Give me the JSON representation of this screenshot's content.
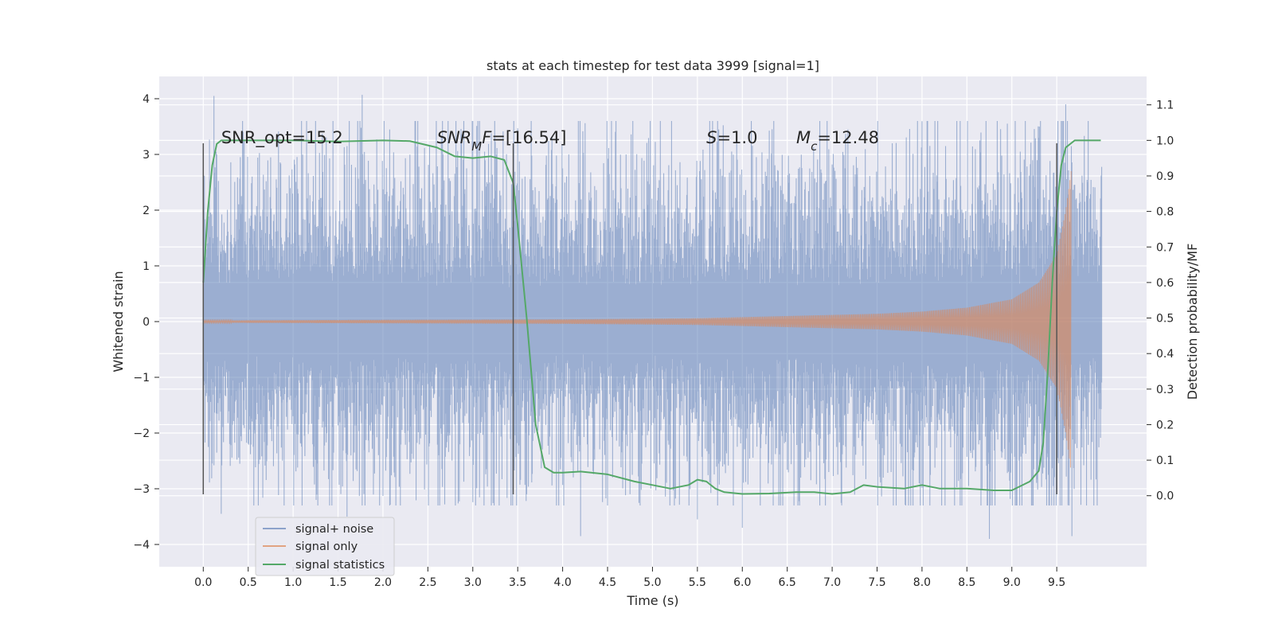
{
  "chart_data": {
    "type": "line",
    "title": "stats at each timestep for test data 3999 [signal=1]",
    "xlabel": "Time (s)",
    "ylabel_left": "Whitened strain",
    "ylabel_right": "Detection probability/MF",
    "xlim": [
      -0.49,
      10.5
    ],
    "ylim_left": [
      -4.4,
      4.4
    ],
    "ylim_right": [
      -0.2,
      1.18
    ],
    "x_ticks": [
      0.0,
      0.5,
      1.0,
      1.5,
      2.0,
      2.5,
      3.0,
      3.5,
      4.0,
      4.5,
      5.0,
      5.5,
      6.0,
      6.5,
      7.0,
      7.5,
      8.0,
      8.5,
      9.0,
      9.5
    ],
    "x_tick_labels": [
      "0.0",
      "0.5",
      "1.0",
      "1.5",
      "2.0",
      "2.5",
      "3.0",
      "3.5",
      "4.0",
      "4.5",
      "5.0",
      "5.5",
      "6.0",
      "6.5",
      "7.0",
      "7.5",
      "8.0",
      "8.5",
      "9.0",
      "9.5"
    ],
    "y_left_ticks": [
      -4,
      -3,
      -2,
      -1,
      0,
      1,
      2,
      3,
      4
    ],
    "y_left_tick_labels": [
      "−4",
      "−3",
      "−2",
      "−1",
      "0",
      "1",
      "2",
      "3",
      "4"
    ],
    "y_right_ticks": [
      0.0,
      0.1,
      0.2,
      0.3,
      0.4,
      0.5,
      0.6,
      0.7,
      0.8,
      0.9,
      1.0,
      1.1
    ],
    "y_right_tick_labels": [
      "0.0",
      "0.1",
      "0.2",
      "0.3",
      "0.4",
      "0.5",
      "0.6",
      "0.7",
      "0.8",
      "0.9",
      "1.0",
      "1.1"
    ],
    "grid": true,
    "legend_position": "lower-left",
    "series": [
      {
        "name": "signal+ noise",
        "axis": "left",
        "color": "#4c72b0",
        "alpha": 0.5,
        "kind": "noisy_strain",
        "x_range": [
          0.0,
          10.0
        ],
        "envelope_points": [
          [
            0.0,
            2.2
          ],
          [
            1.0,
            2.5
          ],
          [
            2.0,
            2.4
          ],
          [
            3.0,
            2.5
          ],
          [
            4.0,
            2.3
          ],
          [
            5.0,
            2.3
          ],
          [
            6.0,
            2.4
          ],
          [
            7.0,
            2.4
          ],
          [
            8.0,
            2.5
          ],
          [
            9.0,
            2.6
          ],
          [
            9.5,
            2.9
          ],
          [
            10.0,
            2.3
          ]
        ],
        "peaks": [
          [
            0.12,
            4.05
          ],
          [
            1.77,
            4.07
          ],
          [
            0.2,
            -3.45
          ],
          [
            1.6,
            -3.5
          ],
          [
            4.2,
            -3.85
          ],
          [
            5.5,
            -3.55
          ],
          [
            6.0,
            -3.7
          ],
          [
            8.75,
            -3.9
          ],
          [
            9.6,
            3.9
          ],
          [
            9.67,
            -3.85
          ]
        ]
      },
      {
        "name": "signal only",
        "axis": "left",
        "color": "#dd8452",
        "alpha": 0.6,
        "kind": "chirp",
        "x_range": [
          0.0,
          9.66
        ],
        "amplitude_points": [
          [
            0.0,
            0.02
          ],
          [
            2.0,
            0.03
          ],
          [
            4.0,
            0.04
          ],
          [
            5.5,
            0.06
          ],
          [
            6.5,
            0.1
          ],
          [
            7.5,
            0.14
          ],
          [
            8.0,
            0.18
          ],
          [
            8.5,
            0.25
          ],
          [
            9.0,
            0.4
          ],
          [
            9.3,
            0.7
          ],
          [
            9.5,
            1.2
          ],
          [
            9.6,
            2.0
          ],
          [
            9.66,
            2.7
          ]
        ]
      },
      {
        "name": "signal statistics",
        "axis": "right",
        "color": "#55a868",
        "kind": "line",
        "x": [
          0.0,
          0.05,
          0.1,
          0.15,
          0.2,
          0.3,
          0.5,
          1.0,
          1.5,
          2.0,
          2.3,
          2.6,
          2.8,
          3.0,
          3.2,
          3.35,
          3.45,
          3.5,
          3.6,
          3.7,
          3.8,
          3.9,
          4.0,
          4.2,
          4.5,
          4.8,
          5.0,
          5.2,
          5.4,
          5.5,
          5.6,
          5.7,
          5.8,
          6.0,
          6.3,
          6.6,
          6.8,
          7.0,
          7.2,
          7.35,
          7.5,
          7.8,
          8.0,
          8.2,
          8.5,
          8.8,
          9.0,
          9.2,
          9.3,
          9.35,
          9.4,
          9.45,
          9.5,
          9.55,
          9.6,
          9.7,
          9.8,
          9.9,
          9.99
        ],
        "y": [
          0.6,
          0.8,
          0.93,
          0.99,
          1.0,
          1.0,
          1.0,
          1.0,
          0.997,
          1.0,
          0.998,
          0.98,
          0.955,
          0.95,
          0.955,
          0.945,
          0.88,
          0.76,
          0.5,
          0.2,
          0.08,
          0.065,
          0.065,
          0.068,
          0.06,
          0.04,
          0.03,
          0.02,
          0.03,
          0.045,
          0.04,
          0.02,
          0.01,
          0.005,
          0.006,
          0.01,
          0.01,
          0.005,
          0.01,
          0.03,
          0.025,
          0.02,
          0.03,
          0.02,
          0.02,
          0.015,
          0.015,
          0.04,
          0.07,
          0.15,
          0.35,
          0.6,
          0.8,
          0.93,
          0.98,
          1.0,
          1.0,
          1.0,
          1.0
        ]
      }
    ],
    "vertical_lines": [
      {
        "x": 0.0,
        "y_from": -3.1,
        "y_to": 3.2
      },
      {
        "x": 3.45,
        "y_from": -3.1,
        "y_to": 3.2
      },
      {
        "x": 9.5,
        "y_from": -3.1,
        "y_to": 3.2
      }
    ],
    "annotations": [
      {
        "text_parts": [
          [
            "SNR_opt=15.2",
            false
          ]
        ],
        "x": 0.2,
        "y": 3.2
      },
      {
        "text_parts": [
          [
            "SNR",
            true
          ],
          [
            "M",
            true,
            "sub"
          ],
          [
            "F",
            true
          ],
          [
            "=[16.54]",
            false
          ]
        ],
        "x": 2.6,
        "y": 3.2
      },
      {
        "text_parts": [
          [
            "S",
            true
          ],
          [
            "=1.0",
            false
          ]
        ],
        "x": 5.6,
        "y": 3.2
      },
      {
        "text_parts": [
          [
            "M",
            true
          ],
          [
            "c",
            true,
            "sub"
          ],
          [
            "=12.48",
            false
          ]
        ],
        "x": 6.6,
        "y": 3.2
      }
    ]
  }
}
